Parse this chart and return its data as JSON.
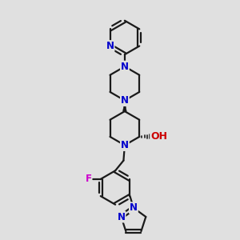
{
  "bg_color": "#e0e0e0",
  "bond_color": "#1a1a1a",
  "N_color": "#0000cc",
  "O_color": "#cc0000",
  "F_color": "#cc00cc",
  "line_width": 1.6,
  "font_size_atom": 8.5,
  "fig_width": 3.0,
  "fig_height": 3.0,
  "xlim": [
    0,
    10
  ],
  "ylim": [
    0,
    10
  ]
}
